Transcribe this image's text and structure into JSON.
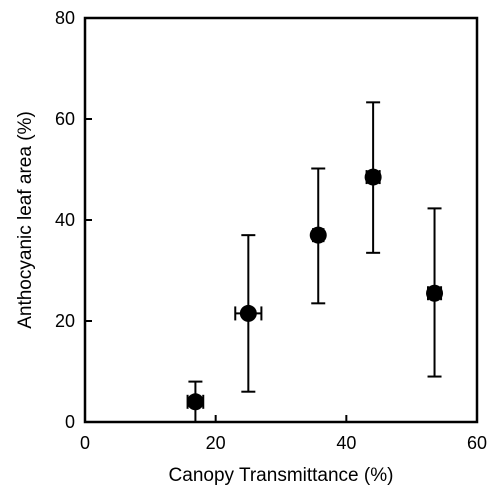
{
  "chart_data": {
    "type": "scatter",
    "xlabel": "Canopy Transmittance (%)",
    "ylabel": "Anthocyanic leaf area (%)",
    "xlim": [
      0,
      60
    ],
    "ylim": [
      0,
      80
    ],
    "xticks": [
      0,
      20,
      40,
      60
    ],
    "yticks": [
      0,
      20,
      40,
      60,
      80
    ],
    "grid": false,
    "points": [
      {
        "x": 16.9,
        "y": 4.0,
        "x_err": 1.2,
        "y_low": 0.0,
        "y_high": 8.0
      },
      {
        "x": 25.0,
        "y": 21.5,
        "x_err": 2.0,
        "y_low": 6.0,
        "y_high": 37.0
      },
      {
        "x": 35.7,
        "y": 37.0,
        "x_err": 0.8,
        "y_low": 23.5,
        "y_high": 50.2
      },
      {
        "x": 44.1,
        "y": 48.5,
        "x_err": 1.0,
        "y_low": 33.5,
        "y_high": 63.3
      },
      {
        "x": 53.5,
        "y": 25.5,
        "x_err": 1.0,
        "y_low": 9.0,
        "y_high": 42.3
      }
    ]
  }
}
